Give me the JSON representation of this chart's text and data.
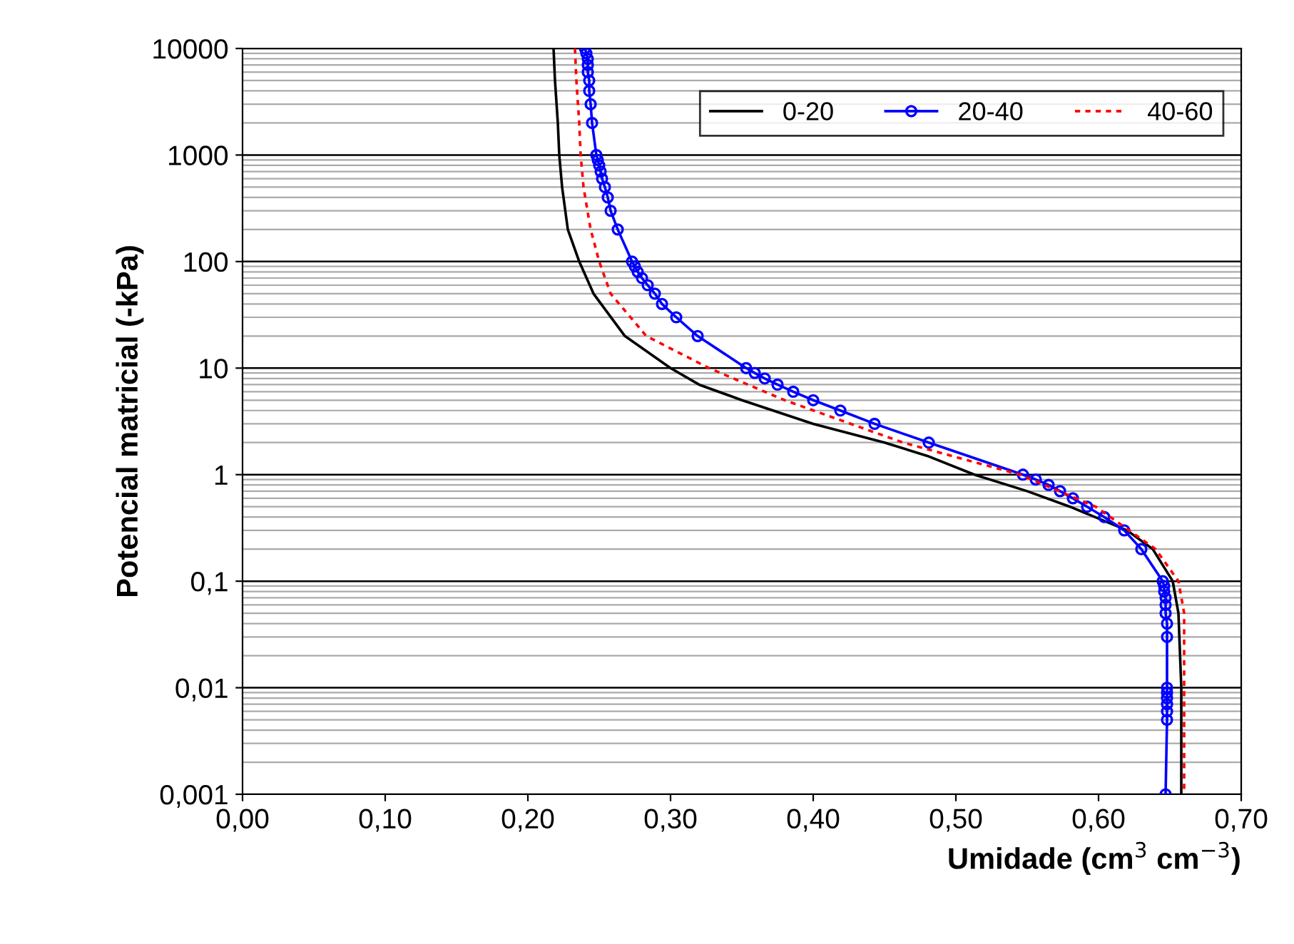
{
  "chart_data": {
    "type": "line",
    "xlabel": "Umidade (cm$^{3}$ cm$^{−3}$)",
    "ylabel": "Potencial matricial (-kPa)",
    "log": "y",
    "grid": "y",
    "legend": "top right",
    "xlim": [
      0,
      0.7
    ],
    "xticks": [
      {
        "value": 0,
        "label": "0,00"
      },
      {
        "value": 0.1,
        "label": "0,10"
      },
      {
        "value": 0.2,
        "label": "0,20"
      },
      {
        "value": 0.3,
        "label": "0,30"
      },
      {
        "value": 0.4,
        "label": "0,40"
      },
      {
        "value": 0.5,
        "label": "0,50"
      },
      {
        "value": 0.6,
        "label": "0,60"
      },
      {
        "value": 0.7,
        "label": "0,70"
      }
    ],
    "ylim": [
      0.001,
      10000
    ],
    "yticks": [
      {
        "value": 0.001,
        "label": "0,001"
      },
      {
        "value": 0.01,
        "label": "0,01"
      },
      {
        "value": 0.1,
        "label": "0,1"
      },
      1,
      10,
      100,
      1000,
      10000
    ],
    "series": [
      {
        "name": "0-20",
        "color": "#000000",
        "marker": "none",
        "line_style": "solid",
        "x": [
          0.218,
          0.219,
          0.221,
          0.222,
          0.224,
          0.228,
          0.236,
          0.246,
          0.268,
          0.3,
          0.32,
          0.35,
          0.4,
          0.45,
          0.48,
          0.513,
          0.55,
          0.58,
          0.62,
          0.638,
          0.652,
          0.656,
          0.658,
          0.658
        ],
        "values": [
          10000,
          5000,
          2000,
          1000,
          500,
          200,
          100,
          50,
          20,
          10,
          7,
          5,
          3,
          2,
          1.5,
          1,
          0.7,
          0.5,
          0.3,
          0.2,
          0.1,
          0.05,
          0.01,
          0.001
        ]
      },
      {
        "name": "20-40",
        "color": "#0000ff",
        "marker": "circle",
        "line_style": "solid",
        "x": [
          0.24,
          0.241,
          0.242,
          0.242,
          0.242,
          0.243,
          0.243,
          0.244,
          0.245,
          0.248,
          0.249,
          0.25,
          0.251,
          0.252,
          0.254,
          0.256,
          0.258,
          0.263,
          0.273,
          0.275,
          0.277,
          0.28,
          0.284,
          0.289,
          0.294,
          0.304,
          0.319,
          0.353,
          0.359,
          0.366,
          0.375,
          0.386,
          0.4,
          0.419,
          0.443,
          0.481,
          0.547,
          0.556,
          0.565,
          0.573,
          0.582,
          0.592,
          0.604,
          0.618,
          0.63,
          0.645,
          0.646,
          0.646,
          0.647,
          0.647,
          0.647,
          0.648,
          0.648,
          0.648,
          0.648,
          0.648,
          0.648,
          0.648,
          0.648,
          0.647
        ],
        "values": [
          10000,
          9000,
          8000,
          7000,
          6000,
          5000,
          4000,
          3000,
          2000,
          1000,
          900,
          800,
          700,
          600,
          500,
          400,
          300,
          200,
          100,
          90,
          80,
          70,
          60,
          50,
          40,
          30,
          20,
          10,
          9,
          8,
          7,
          6,
          5,
          4,
          3,
          2,
          1,
          0.9,
          0.8,
          0.7,
          0.6,
          0.5,
          0.4,
          0.3,
          0.2,
          0.1,
          0.09,
          0.08,
          0.07,
          0.06,
          0.05,
          0.04,
          0.03,
          0.01,
          0.009,
          0.008,
          0.007,
          0.006,
          0.005,
          0.001
        ]
      },
      {
        "name": "40-60",
        "color": "#ff0000",
        "marker": "none",
        "line_style": "dotted",
        "x": [
          0.233,
          0.234,
          0.236,
          0.237,
          0.239,
          0.244,
          0.25,
          0.258,
          0.283,
          0.327,
          0.38,
          0.463,
          0.545,
          0.598,
          0.64,
          0.656,
          0.66,
          0.66,
          0.66
        ],
        "values": [
          10000,
          5000,
          2000,
          1000,
          500,
          200,
          100,
          50,
          20,
          10,
          5,
          2,
          1,
          0.5,
          0.2,
          0.1,
          0.05,
          0.01,
          0.001
        ]
      }
    ]
  }
}
